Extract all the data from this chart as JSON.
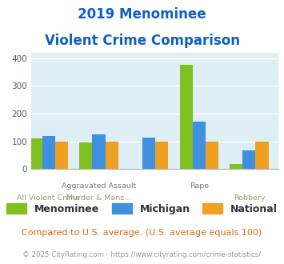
{
  "title_line1": "2019 Menominee",
  "title_line2": "Violent Crime Comparison",
  "groups": [
    {
      "label_top": "",
      "label_bot": "All Violent Crime",
      "menominee": 110,
      "michigan": 120,
      "national": 100
    },
    {
      "label_top": "Aggravated Assault",
      "label_bot": "Murder & Mans...",
      "menominee": 97,
      "michigan": 125,
      "national": 100
    },
    {
      "label_top": "",
      "label_bot": "",
      "menominee": 0,
      "michigan": 113,
      "national": 100
    },
    {
      "label_top": "Rape",
      "label_bot": "",
      "menominee": 378,
      "michigan": 170,
      "national": 100
    },
    {
      "label_top": "",
      "label_bot": "Robbery",
      "menominee": 17,
      "michigan": 67,
      "national": 100
    }
  ],
  "color_menominee": "#80c020",
  "color_michigan": "#4090e0",
  "color_national": "#f0a020",
  "ylim": [
    0,
    420
  ],
  "yticks": [
    0,
    100,
    200,
    300,
    400
  ],
  "background_color": "#ddeef4",
  "title_color": "#1060c0",
  "subtitle_note": "Compared to U.S. average. (U.S. average equals 100)",
  "footer": "© 2025 CityRating.com - https://www.cityrating.com/crime-statistics/",
  "legend_labels": [
    "Menominee",
    "Michigan",
    "National"
  ]
}
